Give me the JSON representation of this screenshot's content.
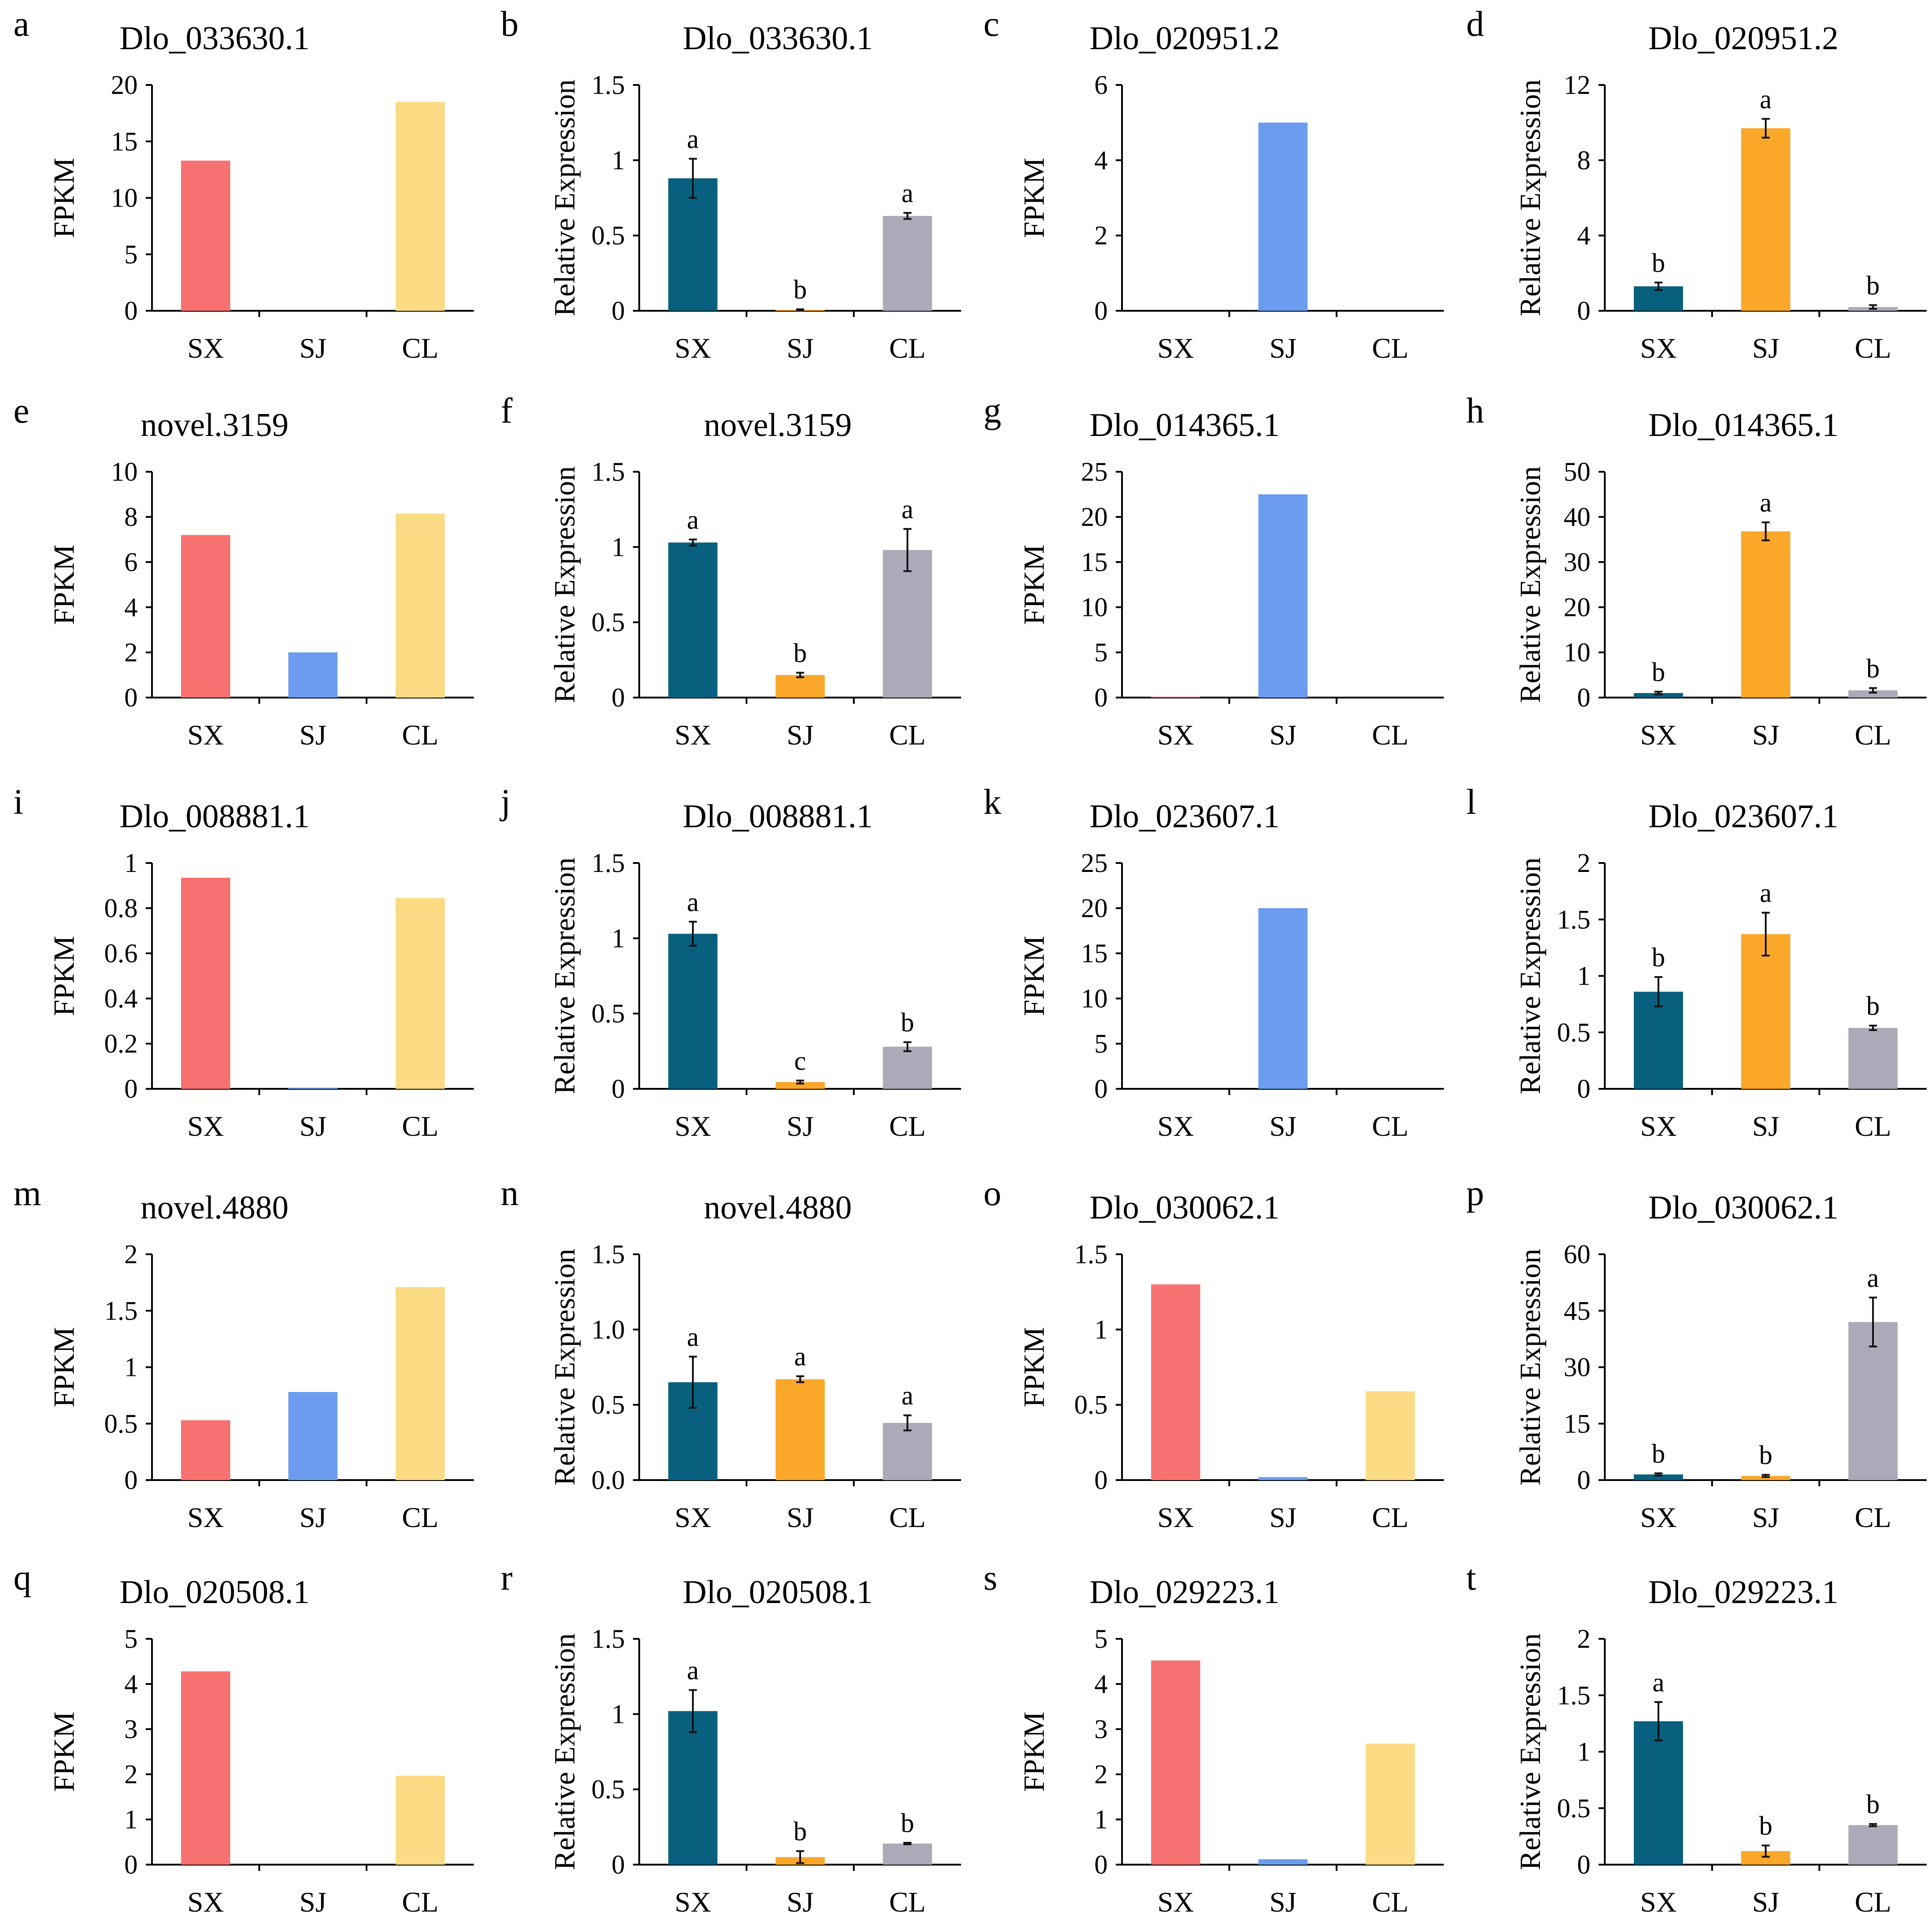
{
  "figure": {
    "colors": {
      "fpkm": {
        "SX": "#f87171",
        "SJ": "#6b9cef",
        "CL": "#fbdc84"
      },
      "qpcr": {
        "SX": "#08607e",
        "SJ": "#faa72a",
        "CL": "#abaab8"
      },
      "axis": "#000000"
    }
  },
  "chart_data": [
    {
      "panel": "a",
      "type": "bar",
      "title": "Dlo_033630.1",
      "ylabel": "FPKM",
      "categories": [
        "SX",
        "SJ",
        "CL"
      ],
      "values": [
        13.3,
        0,
        18.5
      ],
      "ylim": [
        0,
        20
      ],
      "yticks": [
        "0",
        "5",
        "10",
        "15",
        "20"
      ]
    },
    {
      "panel": "b",
      "type": "bar",
      "title": "Dlo_033630.1",
      "ylabel": "Relative Expression",
      "categories": [
        "SX",
        "SJ",
        "CL"
      ],
      "values": [
        0.88,
        0.005,
        0.63
      ],
      "errors": [
        0.13,
        0.005,
        0.02
      ],
      "significance": [
        "a",
        "b",
        "a"
      ],
      "ylim": [
        0,
        1.5
      ],
      "yticks": [
        "0",
        "0.5",
        "1",
        "1.5"
      ]
    },
    {
      "panel": "c",
      "type": "bar",
      "title": "Dlo_020951.2",
      "ylabel": "FPKM",
      "categories": [
        "SX",
        "SJ",
        "CL"
      ],
      "values": [
        0,
        5.0,
        0
      ],
      "ylim": [
        0,
        6
      ],
      "yticks": [
        "0",
        "2",
        "4",
        "6"
      ]
    },
    {
      "panel": "d",
      "type": "bar",
      "title": "Dlo_020951.2",
      "ylabel": "Relative Expression",
      "categories": [
        "SX",
        "SJ",
        "CL"
      ],
      "values": [
        1.3,
        9.7,
        0.2
      ],
      "errors": [
        0.2,
        0.5,
        0.1
      ],
      "significance": [
        "b",
        "a",
        "b"
      ],
      "ylim": [
        0,
        12
      ],
      "yticks": [
        "0",
        "4",
        "8",
        "12"
      ]
    },
    {
      "panel": "e",
      "type": "bar",
      "title": "novel.3159",
      "ylabel": "FPKM",
      "categories": [
        "SX",
        "SJ",
        "CL"
      ],
      "values": [
        7.2,
        2.0,
        8.15
      ],
      "ylim": [
        0,
        10
      ],
      "yticks": [
        "0",
        "2",
        "4",
        "6",
        "8",
        "10"
      ]
    },
    {
      "panel": "f",
      "type": "bar",
      "title": "novel.3159",
      "ylabel": "Relative Expression",
      "categories": [
        "SX",
        "SJ",
        "CL"
      ],
      "values": [
        1.03,
        0.15,
        0.98
      ],
      "errors": [
        0.02,
        0.015,
        0.14
      ],
      "significance": [
        "a",
        "b",
        "a"
      ],
      "ylim": [
        0,
        1.5
      ],
      "yticks": [
        "0",
        "0.5",
        "1",
        "1.5"
      ]
    },
    {
      "panel": "g",
      "type": "bar",
      "title": "Dlo_014365.1",
      "ylabel": "FPKM",
      "categories": [
        "SX",
        "SJ",
        "CL"
      ],
      "values": [
        0.1,
        22.5,
        0
      ],
      "ylim": [
        0,
        25
      ],
      "yticks": [
        "0",
        "5",
        "10",
        "15",
        "20",
        "25"
      ]
    },
    {
      "panel": "h",
      "type": "bar",
      "title": "Dlo_014365.1",
      "ylabel": "Relative Expression",
      "categories": [
        "SX",
        "SJ",
        "CL"
      ],
      "values": [
        1.0,
        36.8,
        1.6
      ],
      "errors": [
        0.3,
        2.0,
        0.5
      ],
      "significance": [
        "b",
        "a",
        "b"
      ],
      "ylim": [
        0,
        50
      ],
      "yticks": [
        "0",
        "10",
        "20",
        "30",
        "40",
        "50"
      ]
    },
    {
      "panel": "i",
      "type": "bar",
      "title": "Dlo_008881.1",
      "ylabel": "FPKM",
      "categories": [
        "SX",
        "SJ",
        "CL"
      ],
      "values": [
        0.935,
        0.005,
        0.845
      ],
      "ylim": [
        0,
        1
      ],
      "yticks": [
        "0",
        "0.2",
        "0.4",
        "0.6",
        "0.8",
        "1"
      ]
    },
    {
      "panel": "j",
      "type": "bar",
      "title": "Dlo_008881.1",
      "ylabel": "Relative Expression",
      "categories": [
        "SX",
        "SJ",
        "CL"
      ],
      "values": [
        1.03,
        0.045,
        0.28
      ],
      "errors": [
        0.08,
        0.01,
        0.03
      ],
      "significance": [
        "a",
        "c",
        "b"
      ],
      "ylim": [
        0,
        1.5
      ],
      "yticks": [
        "0",
        "0.5",
        "1",
        "1.5"
      ]
    },
    {
      "panel": "k",
      "type": "bar",
      "title": "Dlo_023607.1",
      "ylabel": "FPKM",
      "categories": [
        "SX",
        "SJ",
        "CL"
      ],
      "values": [
        0,
        20.0,
        0
      ],
      "ylim": [
        0,
        25
      ],
      "yticks": [
        "0",
        "5",
        "10",
        "15",
        "20",
        "25"
      ]
    },
    {
      "panel": "l",
      "type": "bar",
      "title": "Dlo_023607.1",
      "ylabel": "Relative Expression",
      "categories": [
        "SX",
        "SJ",
        "CL"
      ],
      "values": [
        0.86,
        1.37,
        0.54
      ],
      "errors": [
        0.13,
        0.19,
        0.02
      ],
      "significance": [
        "b",
        "a",
        "b"
      ],
      "ylim": [
        0,
        2
      ],
      "yticks": [
        "0",
        "0.5",
        "1",
        "1.5",
        "2"
      ]
    },
    {
      "panel": "m",
      "type": "bar",
      "title": "novel.4880",
      "ylabel": "FPKM",
      "categories": [
        "SX",
        "SJ",
        "CL"
      ],
      "values": [
        0.53,
        0.78,
        1.71
      ],
      "ylim": [
        0,
        2
      ],
      "yticks": [
        "0",
        "0.5",
        "1",
        "1.5",
        "2"
      ]
    },
    {
      "panel": "n",
      "type": "bar",
      "title": "novel.4880",
      "ylabel": "Relative Expression",
      "categories": [
        "SX",
        "SJ",
        "CL"
      ],
      "values": [
        0.65,
        0.67,
        0.38
      ],
      "errors": [
        0.17,
        0.02,
        0.05
      ],
      "significance": [
        "a",
        "a",
        "a"
      ],
      "ylim": [
        0,
        1.5
      ],
      "yticks": [
        "0.0",
        "0.5",
        "1.0",
        "1.5"
      ]
    },
    {
      "panel": "o",
      "type": "bar",
      "title": "Dlo_030062.1",
      "ylabel": "FPKM",
      "categories": [
        "SX",
        "SJ",
        "CL"
      ],
      "values": [
        1.3,
        0.02,
        0.59
      ],
      "ylim": [
        0,
        1.5
      ],
      "yticks": [
        "0",
        "0.5",
        "1",
        "1.5"
      ]
    },
    {
      "panel": "p",
      "type": "bar",
      "title": "Dlo_030062.1",
      "ylabel": "Relative Expression",
      "categories": [
        "SX",
        "SJ",
        "CL"
      ],
      "values": [
        1.5,
        1.1,
        42.0
      ],
      "errors": [
        0.3,
        0.3,
        6.5
      ],
      "significance": [
        "b",
        "b",
        "a"
      ],
      "ylim": [
        0,
        60
      ],
      "yticks": [
        "0",
        "15",
        "30",
        "45",
        "60"
      ]
    },
    {
      "panel": "q",
      "type": "bar",
      "title": "Dlo_020508.1",
      "ylabel": "FPKM",
      "categories": [
        "SX",
        "SJ",
        "CL"
      ],
      "values": [
        4.28,
        0,
        1.97
      ],
      "ylim": [
        0,
        5
      ],
      "yticks": [
        "0",
        "1",
        "2",
        "3",
        "4",
        "5"
      ]
    },
    {
      "panel": "r",
      "type": "bar",
      "title": "Dlo_020508.1",
      "ylabel": "Relative Expression",
      "categories": [
        "SX",
        "SJ",
        "CL"
      ],
      "values": [
        1.02,
        0.05,
        0.14
      ],
      "errors": [
        0.14,
        0.04,
        0.005
      ],
      "significance": [
        "a",
        "b",
        "b"
      ],
      "ylim": [
        0,
        1.5
      ],
      "yticks": [
        "0",
        "0.5",
        "1",
        "1.5"
      ]
    },
    {
      "panel": "s",
      "type": "bar",
      "title": "Dlo_029223.1",
      "ylabel": "FPKM",
      "categories": [
        "SX",
        "SJ",
        "CL"
      ],
      "values": [
        4.52,
        0.12,
        2.68
      ],
      "ylim": [
        0,
        5
      ],
      "yticks": [
        "0",
        "1",
        "2",
        "3",
        "4",
        "5"
      ]
    },
    {
      "panel": "t",
      "type": "bar",
      "title": "Dlo_029223.1",
      "ylabel": "Relative Expression",
      "categories": [
        "SX",
        "SJ",
        "CL"
      ],
      "values": [
        1.27,
        0.12,
        0.35
      ],
      "errors": [
        0.17,
        0.05,
        0.01
      ],
      "significance": [
        "a",
        "b",
        "b"
      ],
      "ylim": [
        0,
        2
      ],
      "yticks": [
        "0",
        "0.5",
        "1",
        "1.5",
        "2"
      ]
    }
  ]
}
